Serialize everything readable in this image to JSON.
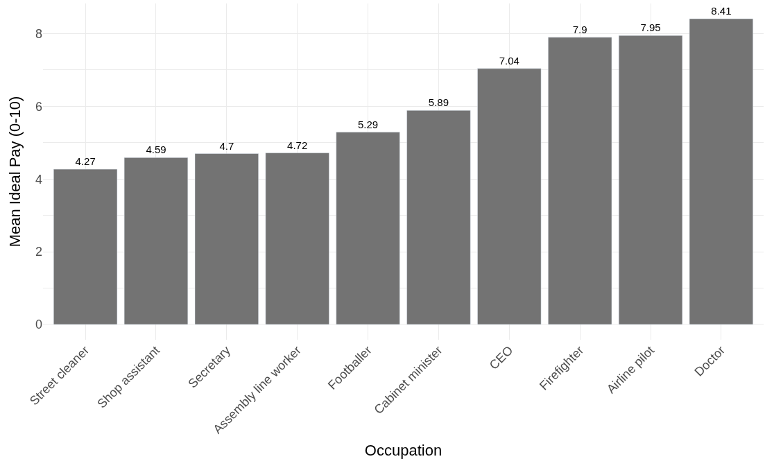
{
  "chart_data": {
    "type": "bar",
    "xlabel": "Occupation",
    "ylabel": "Mean Ideal Pay (0-10)",
    "categories": [
      "Street cleaner",
      "Shop assistant",
      "Secretary",
      "Assembly line worker",
      "Footballer",
      "Cabinet minister",
      "CEO",
      "Firefighter",
      "Airline pilot",
      "Doctor"
    ],
    "values": [
      4.27,
      4.59,
      4.7,
      4.72,
      5.29,
      5.89,
      7.04,
      7.9,
      7.95,
      8.41
    ],
    "color": "#737373",
    "ylim": [
      -0.42,
      8.83
    ],
    "yticks": [
      0,
      {
        "value": 1,
        "label": null
      },
      2,
      {
        "value": 3,
        "label": null
      },
      4,
      {
        "value": 5,
        "label": null
      },
      6,
      {
        "value": 7,
        "label": null
      },
      8
    ],
    "data_labels": true,
    "grid": true,
    "legend": false
  }
}
